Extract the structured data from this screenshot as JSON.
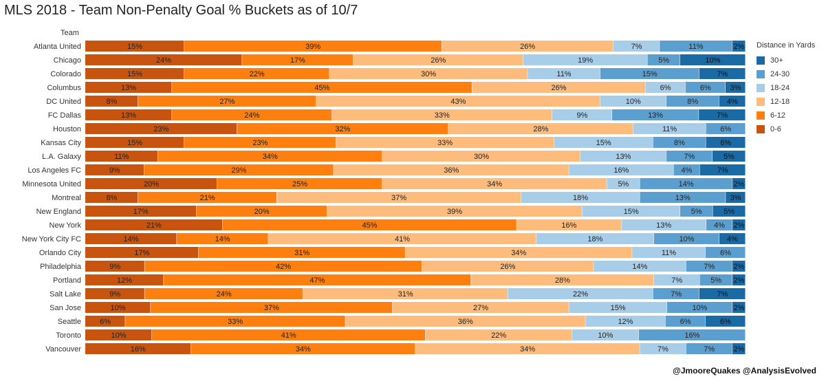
{
  "chart_data": {
    "type": "bar",
    "orientation": "horizontal",
    "stacked": true,
    "normalized_percent": true,
    "title": "MLS 2018 - Team Non-Penalty Goal % Buckets as of 10/7",
    "row_header": "Team",
    "legend_title": "Distance in Yards",
    "legend_placement": "right",
    "grid": false,
    "categories": [
      "Atlanta United",
      "Chicago",
      "Colorado",
      "Columbus",
      "DC United",
      "FC Dallas",
      "Houston",
      "Kansas City",
      "L.A. Galaxy",
      "Los Angeles FC",
      "Minnesota United",
      "Montreal",
      "New England",
      "New York",
      "New York City FC",
      "Orlando City",
      "Philadelphia",
      "Portland",
      "Salt Lake",
      "San Jose",
      "Seattle",
      "Toronto",
      "Vancouver"
    ],
    "series": [
      {
        "name": "0-6",
        "color": "#c8540f",
        "values": [
          15,
          24,
          15,
          13,
          8,
          13,
          23,
          15,
          11,
          9,
          20,
          8,
          17,
          21,
          14,
          17,
          9,
          12,
          9,
          10,
          6,
          10,
          16
        ]
      },
      {
        "name": "6-12",
        "color": "#fd7f10",
        "values": [
          39,
          17,
          22,
          45,
          27,
          24,
          32,
          23,
          34,
          29,
          25,
          21,
          20,
          45,
          14,
          31,
          42,
          47,
          24,
          37,
          33,
          41,
          34
        ]
      },
      {
        "name": "12-18",
        "color": "#fdbc7c",
        "values": [
          26,
          26,
          30,
          26,
          43,
          33,
          28,
          33,
          30,
          36,
          34,
          37,
          39,
          16,
          41,
          34,
          26,
          28,
          31,
          27,
          36,
          22,
          34
        ]
      },
      {
        "name": "18-24",
        "color": "#a7cde8",
        "values": [
          7,
          19,
          11,
          6,
          10,
          9,
          11,
          15,
          13,
          16,
          5,
          18,
          15,
          13,
          18,
          11,
          14,
          7,
          22,
          15,
          12,
          10,
          7
        ]
      },
      {
        "name": "24-30",
        "color": "#5b9fd1",
        "values": [
          11,
          5,
          15,
          6,
          8,
          13,
          6,
          8,
          7,
          4,
          14,
          13,
          5,
          4,
          10,
          6,
          7,
          5,
          7,
          10,
          6,
          16,
          7
        ]
      },
      {
        "name": "30+",
        "color": "#1a6aa6",
        "values": [
          2,
          10,
          7,
          3,
          4,
          7,
          0,
          6,
          5,
          7,
          2,
          3,
          5,
          2,
          4,
          0,
          2,
          2,
          7,
          2,
          6,
          0,
          2
        ]
      }
    ],
    "legend_order": [
      "30+",
      "24-30",
      "18-24",
      "12-18",
      "6-12",
      "0-6"
    ]
  },
  "credit": "@JmooreQuakes @AnalysisEvolved"
}
